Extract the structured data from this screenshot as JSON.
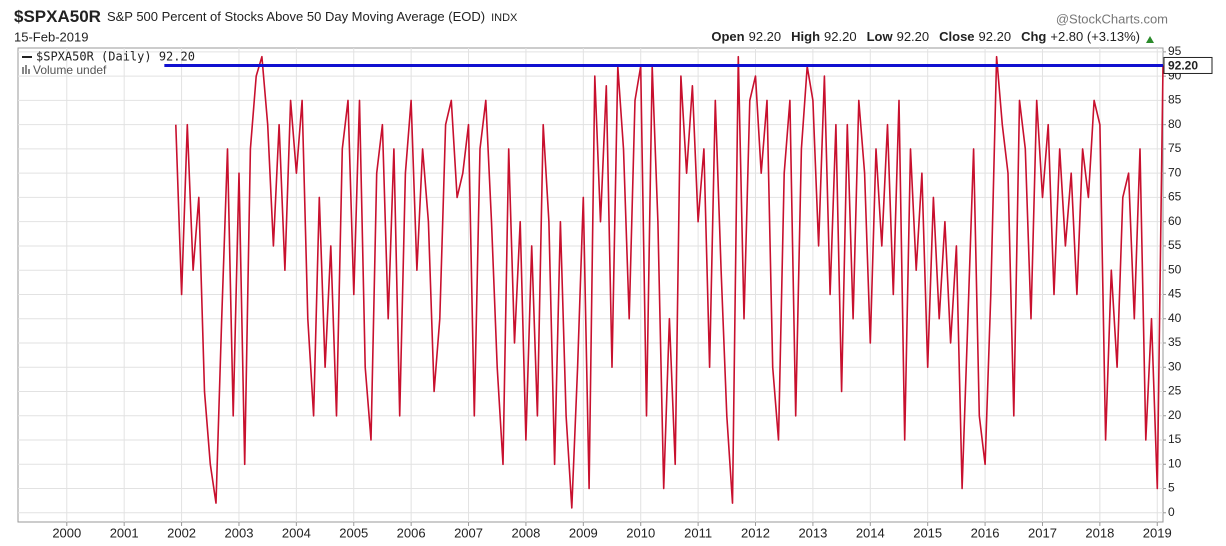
{
  "chart_data": {
    "type": "line",
    "title": "$SPXA50R",
    "subtitle": "S&P 500 Percent of Stocks Above 50 Day Moving Average (EOD)",
    "exchange": "INDX",
    "source": "@StockCharts.com",
    "date": "15-Feb-2019",
    "quote": [
      {
        "label": "Open",
        "value": "92.20"
      },
      {
        "label": "High",
        "value": "92.20"
      },
      {
        "label": "Low",
        "value": "92.20"
      },
      {
        "label": "Close",
        "value": "92.20"
      },
      {
        "label": "Chg",
        "value": "+2.80 (+3.13%)"
      }
    ],
    "volume_label": "Volume undef",
    "series": [
      {
        "name": "$SPXA50R (Daily) 92.20",
        "color": "#c8102e",
        "x": [
          2001.9,
          2002.0,
          2002.1,
          2002.2,
          2002.3,
          2002.4,
          2002.5,
          2002.6,
          2002.7,
          2002.8,
          2002.9,
          2003.0,
          2003.1,
          2003.2,
          2003.3,
          2003.4,
          2003.5,
          2003.6,
          2003.7,
          2003.8,
          2003.9,
          2004.0,
          2004.1,
          2004.2,
          2004.3,
          2004.4,
          2004.5,
          2004.6,
          2004.7,
          2004.8,
          2004.9,
          2005.0,
          2005.1,
          2005.2,
          2005.3,
          2005.4,
          2005.5,
          2005.6,
          2005.7,
          2005.8,
          2005.9,
          2006.0,
          2006.1,
          2006.2,
          2006.3,
          2006.4,
          2006.5,
          2006.6,
          2006.7,
          2006.8,
          2006.9,
          2007.0,
          2007.1,
          2007.2,
          2007.3,
          2007.4,
          2007.5,
          2007.6,
          2007.7,
          2007.8,
          2007.9,
          2008.0,
          2008.1,
          2008.2,
          2008.3,
          2008.4,
          2008.5,
          2008.6,
          2008.7,
          2008.8,
          2008.9,
          2009.0,
          2009.1,
          2009.2,
          2009.3,
          2009.4,
          2009.5,
          2009.6,
          2009.7,
          2009.8,
          2009.9,
          2010.0,
          2010.1,
          2010.2,
          2010.3,
          2010.4,
          2010.5,
          2010.6,
          2010.7,
          2010.8,
          2010.9,
          2011.0,
          2011.1,
          2011.2,
          2011.3,
          2011.4,
          2011.5,
          2011.6,
          2011.7,
          2011.8,
          2011.9,
          2012.0,
          2012.1,
          2012.2,
          2012.3,
          2012.4,
          2012.5,
          2012.6,
          2012.7,
          2012.8,
          2012.9,
          2013.0,
          2013.1,
          2013.2,
          2013.3,
          2013.4,
          2013.5,
          2013.6,
          2013.7,
          2013.8,
          2013.9,
          2014.0,
          2014.1,
          2014.2,
          2014.3,
          2014.4,
          2014.5,
          2014.6,
          2014.7,
          2014.8,
          2014.9,
          2015.0,
          2015.1,
          2015.2,
          2015.3,
          2015.4,
          2015.5,
          2015.6,
          2015.7,
          2015.8,
          2015.9,
          2016.0,
          2016.1,
          2016.2,
          2016.3,
          2016.4,
          2016.5,
          2016.6,
          2016.7,
          2016.8,
          2016.9,
          2017.0,
          2017.1,
          2017.2,
          2017.3,
          2017.4,
          2017.5,
          2017.6,
          2017.7,
          2017.8,
          2017.9,
          2018.0,
          2018.1,
          2018.2,
          2018.3,
          2018.4,
          2018.5,
          2018.6,
          2018.7,
          2018.8,
          2018.9,
          2019.0,
          2019.1
        ],
        "values": [
          80,
          45,
          80,
          50,
          65,
          25,
          10,
          2,
          40,
          75,
          20,
          70,
          10,
          75,
          90,
          94,
          80,
          55,
          80,
          50,
          85,
          70,
          85,
          40,
          20,
          65,
          30,
          55,
          20,
          75,
          85,
          45,
          85,
          30,
          15,
          70,
          80,
          40,
          75,
          20,
          70,
          85,
          50,
          75,
          60,
          25,
          40,
          80,
          85,
          65,
          70,
          80,
          20,
          75,
          85,
          60,
          30,
          10,
          75,
          35,
          60,
          15,
          55,
          20,
          80,
          60,
          10,
          60,
          20,
          1,
          30,
          65,
          5,
          90,
          60,
          88,
          30,
          92,
          75,
          40,
          85,
          92,
          20,
          92,
          60,
          5,
          40,
          10,
          90,
          70,
          88,
          60,
          75,
          30,
          85,
          50,
          20,
          2,
          94,
          40,
          85,
          90,
          70,
          85,
          30,
          15,
          70,
          85,
          20,
          75,
          92,
          85,
          55,
          90,
          45,
          80,
          25,
          80,
          40,
          85,
          70,
          35,
          75,
          55,
          80,
          45,
          85,
          15,
          75,
          50,
          70,
          30,
          65,
          40,
          60,
          35,
          55,
          5,
          40,
          75,
          20,
          10,
          45,
          94,
          80,
          70,
          20,
          85,
          75,
          40,
          85,
          65,
          80,
          45,
          75,
          55,
          70,
          45,
          75,
          65,
          85,
          80,
          15,
          50,
          30,
          65,
          70,
          40,
          75,
          15,
          40,
          5,
          92.2
        ]
      }
    ],
    "hline": {
      "value": 92.2,
      "label": "92.20",
      "color": "#1010d0",
      "x_start": 2001.7
    },
    "xlim": [
      1999.15,
      2019.1
    ],
    "xticks": [
      2000,
      2001,
      2002,
      2003,
      2004,
      2005,
      2006,
      2007,
      2008,
      2009,
      2010,
      2011,
      2012,
      2013,
      2014,
      2015,
      2016,
      2017,
      2018,
      2019
    ],
    "ylim": [
      -1.9,
      95.8
    ],
    "yticks": [
      0,
      5,
      10,
      15,
      20,
      25,
      30,
      35,
      40,
      45,
      50,
      55,
      60,
      65,
      70,
      75,
      80,
      85,
      90,
      95
    ],
    "grid": true
  }
}
